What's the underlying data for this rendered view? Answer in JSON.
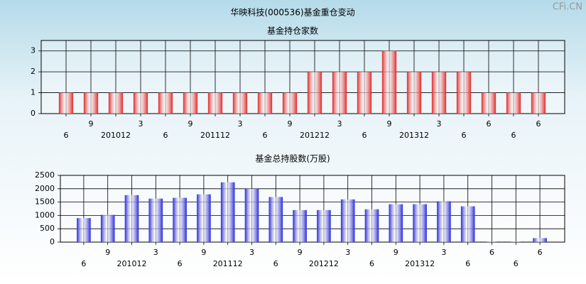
{
  "title": "华映科技(000536)基金重仓变动",
  "watermark": "CFi.CN",
  "chart_data": [
    {
      "type": "bar",
      "title": "基金持仓家数",
      "categories": [
        "6",
        "9",
        "201012",
        "3",
        "6",
        "9",
        "201112",
        "3",
        "6",
        "9",
        "201212",
        "3",
        "6",
        "9",
        "201312",
        "3",
        "6",
        "6",
        "6",
        "6"
      ],
      "values": [
        1,
        1,
        1,
        1,
        1,
        1,
        1,
        1,
        1,
        1,
        2,
        2,
        2,
        3,
        2,
        2,
        2,
        1,
        1,
        1
      ],
      "color": "#e02828",
      "ylim": [
        0,
        3.5
      ],
      "yticks": [
        0,
        1,
        2,
        3
      ],
      "grid": true
    },
    {
      "type": "bar",
      "title": "基金总持股数(万股)",
      "categories": [
        "6",
        "9",
        "201012",
        "3",
        "6",
        "9",
        "201112",
        "3",
        "6",
        "9",
        "201212",
        "3",
        "6",
        "9",
        "201312",
        "3",
        "6",
        "6",
        "6",
        "6"
      ],
      "values": [
        900,
        1020,
        1760,
        1630,
        1660,
        1790,
        2240,
        2000,
        1690,
        1200,
        1200,
        1600,
        1230,
        1420,
        1420,
        1530,
        1340,
        20,
        20,
        150
      ],
      "color": "#2828d8",
      "ylim": [
        0,
        2500
      ],
      "yticks": [
        0,
        500,
        1000,
        1500,
        2000,
        2500
      ],
      "grid": true
    }
  ]
}
